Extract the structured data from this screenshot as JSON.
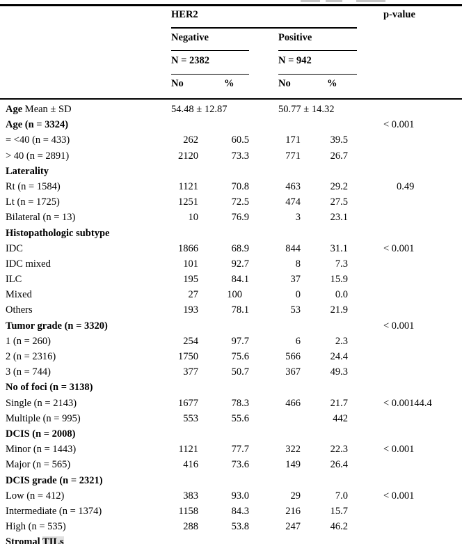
{
  "table": {
    "header": {
      "group": "HER2",
      "p_value": "p-value",
      "negative": {
        "label": "Negative",
        "n": "N = 2382"
      },
      "positive": {
        "label": "Positive",
        "n": "N = 942"
      },
      "col_no_neg": "No",
      "col_pct_neg": "%",
      "col_no_pos": "No",
      "col_pct_pos": "%"
    },
    "rows": [
      {
        "label": "Age",
        "label_rest": " Mean ± SD",
        "bold": true,
        "type": "mean",
        "neg_mean": "54.48 ± 12.87",
        "pos_mean": "50.77 ± 14.32"
      },
      {
        "label": "Age (n = 3324)",
        "bold": true,
        "p": "< 0.001"
      },
      {
        "label": "= <40 (n = 433)",
        "neg_no": "262",
        "neg_pct": "60.5",
        "pos_no": "171",
        "pos_pct": "39.5"
      },
      {
        "label": "> 40 (n = 2891)",
        "neg_no": "2120",
        "neg_pct": "73.3",
        "pos_no": "771",
        "pos_pct": "26.7"
      },
      {
        "label": "Laterality",
        "bold": true
      },
      {
        "label": "Rt (n = 1584)",
        "neg_no": "1121",
        "neg_pct": "70.8",
        "pos_no": "463",
        "pos_pct": "29.2",
        "p": "0.49"
      },
      {
        "label": "Lt (n = 1725)",
        "neg_no": "1251",
        "neg_pct": "72.5",
        "pos_no": "474",
        "pos_pct": "27.5"
      },
      {
        "label": "Bilateral (n = 13)",
        "neg_no": "10",
        "neg_pct": "76.9",
        "pos_no": "3",
        "pos_pct": "23.1"
      },
      {
        "label": "Histopathologic subtype",
        "bold": true
      },
      {
        "label": "IDC",
        "neg_no": "1866",
        "neg_pct": "68.9",
        "pos_no": "844",
        "pos_pct": "31.1",
        "p": "< 0.001"
      },
      {
        "label": "IDC mixed",
        "neg_no": "101",
        "neg_pct": "92.7",
        "pos_no": "8",
        "pos_pct": "7.3"
      },
      {
        "label": "ILC",
        "neg_no": "195",
        "neg_pct": "84.1",
        "pos_no": "37",
        "pos_pct": "15.9"
      },
      {
        "label": "Mixed",
        "neg_no": "27",
        "neg_pct": "100",
        "pos_no": "0",
        "pos_pct": "0.0"
      },
      {
        "label": "Others",
        "neg_no": "193",
        "neg_pct": "78.1",
        "pos_no": "53",
        "pos_pct": "21.9"
      },
      {
        "label": "Tumor grade (n = 3320)",
        "bold": true,
        "p": "< 0.001"
      },
      {
        "label": "1 (n = 260)",
        "neg_no": "254",
        "neg_pct": "97.7",
        "pos_no": "6",
        "pos_pct": "2.3"
      },
      {
        "label": "2 (n = 2316)",
        "neg_no": "1750",
        "neg_pct": "75.6",
        "pos_no": "566",
        "pos_pct": "24.4"
      },
      {
        "label": "3 (n = 744)",
        "neg_no": "377",
        "neg_pct": "50.7",
        "pos_no": "367",
        "pos_pct": "49.3"
      },
      {
        "label": "No of foci (n = 3138)",
        "bold": true
      },
      {
        "label": "Single (n = 2143)",
        "neg_no": "1677",
        "neg_pct": "78.3",
        "pos_no": "466",
        "pos_pct": "21.7",
        "p": "< 0.00144.4"
      },
      {
        "label": "Multiple (n = 995)",
        "neg_no": "553",
        "neg_pct": "55.6",
        "pos_no": "",
        "pos_pct": "442"
      },
      {
        "label": "DCIS (n = 2008)",
        "bold": true
      },
      {
        "label": "Minor (n = 1443)",
        "neg_no": "1121",
        "neg_pct": "77.7",
        "pos_no": "322",
        "pos_pct": "22.3",
        "p": "< 0.001"
      },
      {
        "label": "Major (n = 565)",
        "neg_no": "416",
        "neg_pct": "73.6",
        "pos_no": "149",
        "pos_pct": "26.4"
      },
      {
        "label": "DCIS grade (n = 2321)",
        "bold": true
      },
      {
        "label": "Low (n = 412)",
        "neg_no": "383",
        "neg_pct": "93.0",
        "pos_no": "29",
        "pos_pct": "7.0",
        "p": "< 0.001"
      },
      {
        "label": "Intermediate (n = 1374)",
        "neg_no": "1158",
        "neg_pct": "84.3",
        "pos_no": "216",
        "pos_pct": "15.7"
      },
      {
        "label": "High (n = 535)",
        "neg_no": "288",
        "neg_pct": "53.8",
        "pos_no": "247",
        "pos_pct": "46.2"
      },
      {
        "label": "Stromal ",
        "highlight": "TILs",
        "bold": true,
        "partial": true
      }
    ]
  }
}
